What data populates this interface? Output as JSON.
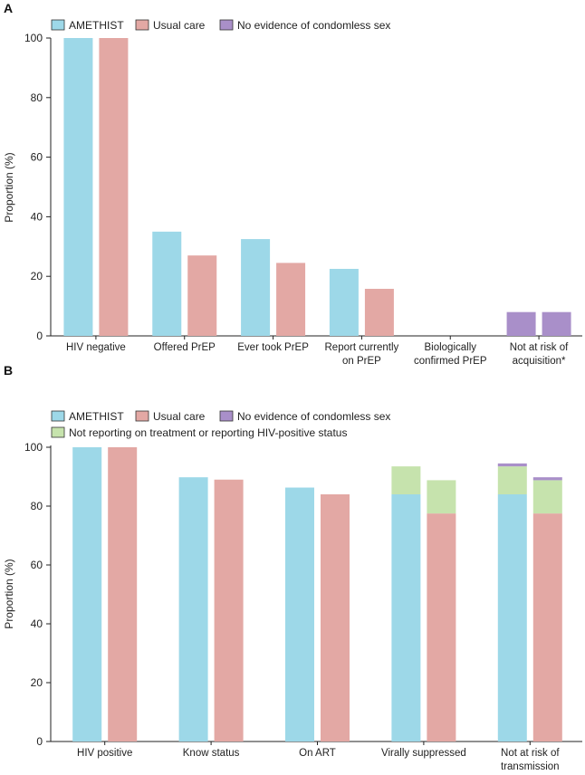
{
  "colors": {
    "amethist": "#9dd8e8",
    "usual_care": "#e3a8a4",
    "no_condomless_sex": "#a98fc9",
    "not_reporting": "#c6e3ad"
  },
  "chart_data": [
    {
      "panel": "A",
      "type": "bar",
      "ylabel": "Proportion (%)",
      "ylim": [
        0,
        100
      ],
      "yticks": [
        0,
        20,
        40,
        60,
        80,
        100
      ],
      "legend": [
        "AMETHIST",
        "Usual care",
        "No evidence of condomless sex"
      ],
      "categories": [
        [
          "HIV negative"
        ],
        [
          "Offered PrEP"
        ],
        [
          "Ever took PrEP"
        ],
        [
          "Report currently",
          "on PrEP"
        ],
        [
          "Biologically",
          "confirmed PrEP"
        ],
        [
          "Not at risk of",
          "acquisition*"
        ]
      ],
      "series": [
        {
          "name": "AMETHIST",
          "values": [
            100,
            35,
            32.5,
            22.5,
            0,
            0
          ]
        },
        {
          "name": "Usual care",
          "values": [
            100,
            27,
            24.5,
            15.8,
            0,
            0
          ]
        },
        {
          "name": "No evidence of condomless sex (AMETHIST)",
          "values": [
            0,
            0,
            0,
            0,
            0,
            8
          ]
        },
        {
          "name": "No evidence of condomless sex (Usual care)",
          "values": [
            0,
            0,
            0,
            0,
            0,
            8
          ]
        }
      ]
    },
    {
      "panel": "B",
      "type": "bar",
      "stacked": true,
      "ylabel": "Proportion (%)",
      "ylim": [
        0,
        100
      ],
      "yticks": [
        0,
        20,
        40,
        60,
        80,
        100
      ],
      "legend": [
        "AMETHIST",
        "Usual care",
        "No evidence of condomless sex",
        "Not reporting on treatment or reporting HIV-positive status"
      ],
      "categories": [
        [
          "HIV positive"
        ],
        [
          "Know status"
        ],
        [
          "On ART"
        ],
        [
          "Virally suppressed"
        ],
        [
          "Not at risk of",
          "transmission"
        ]
      ],
      "groups": [
        {
          "amethist": {
            "base": 100,
            "not_reporting": 0,
            "no_condomless": 0
          },
          "usual_care": {
            "base": 100,
            "not_reporting": 0,
            "no_condomless": 0
          }
        },
        {
          "amethist": {
            "base": 89.8,
            "not_reporting": 0,
            "no_condomless": 0
          },
          "usual_care": {
            "base": 89,
            "not_reporting": 0,
            "no_condomless": 0
          }
        },
        {
          "amethist": {
            "base": 86.3,
            "not_reporting": 0,
            "no_condomless": 0
          },
          "usual_care": {
            "base": 84,
            "not_reporting": 0,
            "no_condomless": 0
          }
        },
        {
          "amethist": {
            "base": 84,
            "not_reporting": 9.5,
            "no_condomless": 0
          },
          "usual_care": {
            "base": 77.5,
            "not_reporting": 11.3,
            "no_condomless": 0
          }
        },
        {
          "amethist": {
            "base": 84,
            "not_reporting": 9.5,
            "no_condomless": 1
          },
          "usual_care": {
            "base": 77.5,
            "not_reporting": 11.3,
            "no_condomless": 1
          }
        }
      ]
    }
  ]
}
